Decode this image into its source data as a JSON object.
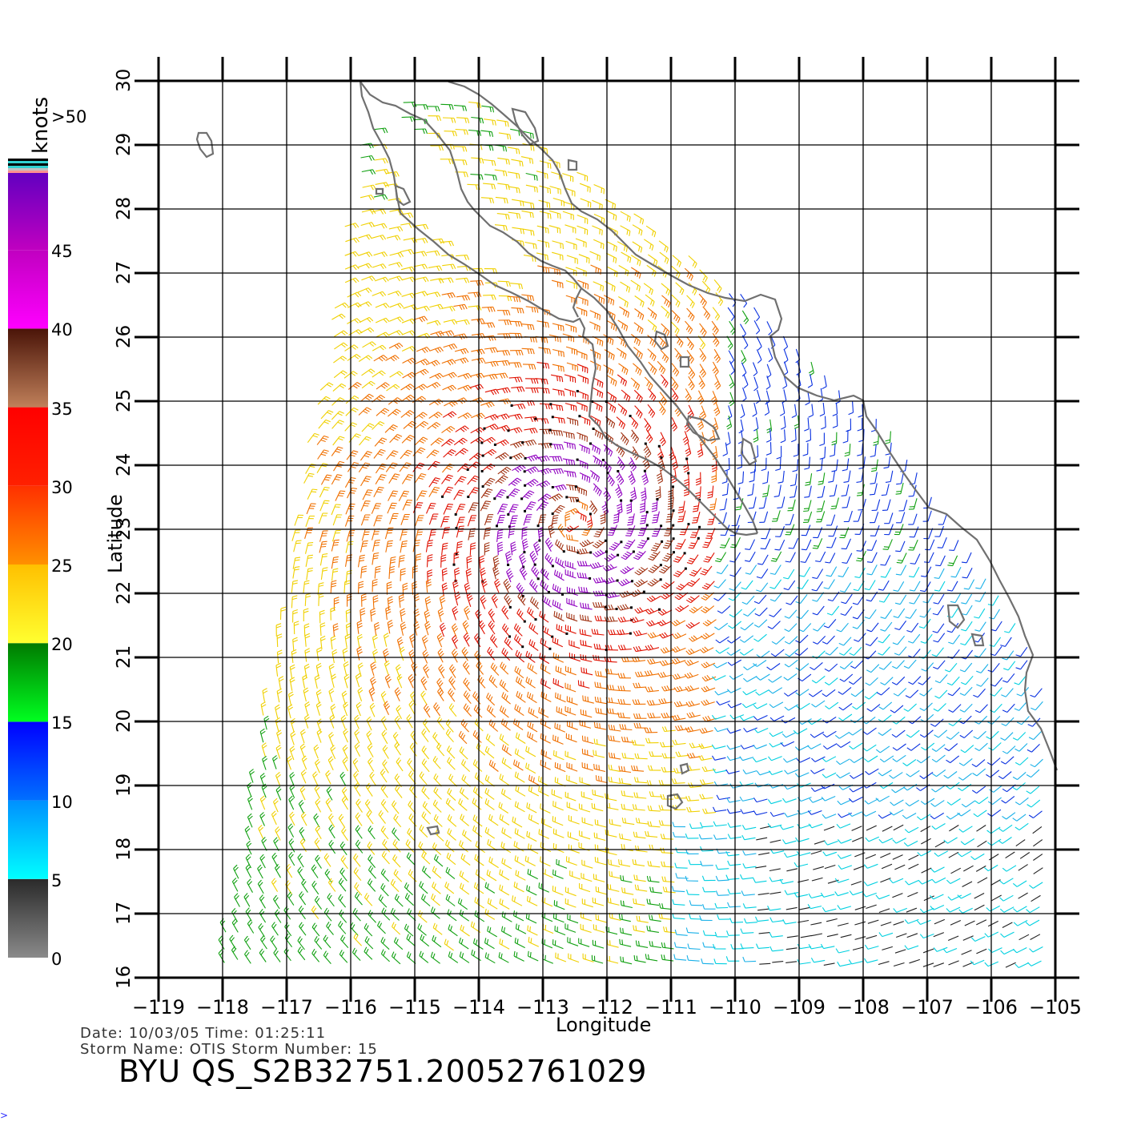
{
  "colorbar": {
    "unit_label": "knots",
    "tick_labels": [
      "0",
      "5",
      "10",
      "15",
      "20",
      "25",
      "30",
      "35",
      "40",
      "45",
      ">50"
    ],
    "segments": [
      {
        "from": 0,
        "to": 5,
        "top": "#2a2a2a",
        "bottom": "#8a8a8a"
      },
      {
        "from": 5,
        "to": 10,
        "top": "#0090ff",
        "bottom": "#00ffff"
      },
      {
        "from": 10,
        "to": 15,
        "top": "#0000ff",
        "bottom": "#0070ff"
      },
      {
        "from": 15,
        "to": 20,
        "top": "#007a00",
        "bottom": "#00ff20"
      },
      {
        "from": 20,
        "to": 25,
        "top": "#ffc000",
        "bottom": "#ffff30"
      },
      {
        "from": 25,
        "to": 30,
        "top": "#ff3000",
        "bottom": "#ff9000"
      },
      {
        "from": 30,
        "to": 35,
        "top": "#ff0000",
        "bottom": "#ff2000"
      },
      {
        "from": 35,
        "to": 40,
        "top": "#4a1408",
        "bottom": "#c0805a"
      },
      {
        "from": 40,
        "to": 45,
        "top": "#c000c0",
        "bottom": "#ff00ff"
      },
      {
        "from": 45,
        "to": 50,
        "top": "#6000c0",
        "bottom": "#c000c0"
      }
    ]
  },
  "axes": {
    "x_label": "Longitude",
    "y_label": "Latitude",
    "lon_ticks": [
      "−119",
      "−118",
      "−117",
      "−116",
      "−115",
      "−114",
      "−113",
      "−112",
      "−111",
      "−110",
      "−109",
      "−108",
      "−107",
      "−106",
      "−105"
    ],
    "lat_ticks": [
      "16",
      "17",
      "18",
      "19",
      "20",
      "21",
      "22",
      "23",
      "24",
      "25",
      "26",
      "27",
      "28",
      "29",
      "30"
    ],
    "lon_range": [
      -119,
      -105
    ],
    "lat_range": [
      16,
      30
    ]
  },
  "storm": {
    "center_lon": -112.5,
    "center_lat": 23.1
  },
  "footer": {
    "date_line": "Date: 10/03/05   Time: 01:25:11",
    "storm_line": "Storm  Name:  OTIS    Storm  Number:  15",
    "product_id": "BYU  QS_S2B32751.20052761029"
  },
  "colors": {
    "grid": "#000000",
    "coast": "#707070"
  }
}
